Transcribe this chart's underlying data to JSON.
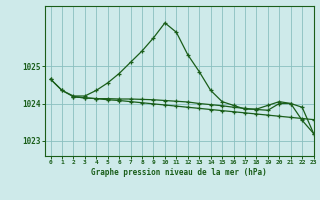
{
  "title": "Graphe pression niveau de la mer (hPa)",
  "background_color": "#ceeaea",
  "grid_color": "#8abfbf",
  "line_color": "#1a5e1a",
  "marker_color": "#1a5e1a",
  "xlim": [
    -0.5,
    23
  ],
  "ylim": [
    1022.6,
    1026.6
  ],
  "yticks": [
    1023,
    1024,
    1025
  ],
  "xticks": [
    0,
    1,
    2,
    3,
    4,
    5,
    6,
    7,
    8,
    9,
    10,
    11,
    12,
    13,
    14,
    15,
    16,
    17,
    18,
    19,
    20,
    21,
    22,
    23
  ],
  "series": [
    {
      "x": [
        0,
        1,
        2,
        3,
        4,
        5,
        6,
        7,
        8,
        9,
        10,
        11,
        12,
        13,
        14,
        15,
        16,
        17,
        18,
        19,
        20,
        21,
        22,
        23
      ],
      "y": [
        1024.65,
        1024.35,
        1024.2,
        1024.2,
        1024.35,
        1024.55,
        1024.8,
        1025.1,
        1025.4,
        1025.75,
        1026.15,
        1025.9,
        1025.3,
        1024.85,
        1024.35,
        1024.05,
        1023.95,
        1023.85,
        1023.85,
        1023.95,
        1024.05,
        1024.0,
        1023.55,
        1023.2
      ]
    },
    {
      "x": [
        2,
        3,
        4,
        5,
        6,
        7,
        8,
        9,
        10,
        11,
        12,
        13,
        14,
        15,
        16,
        17,
        18,
        19,
        20,
        21,
        22,
        23
      ],
      "y": [
        1024.18,
        1024.15,
        1024.13,
        1024.1,
        1024.08,
        1024.05,
        1024.02,
        1023.99,
        1023.96,
        1023.93,
        1023.9,
        1023.87,
        1023.84,
        1023.81,
        1023.78,
        1023.75,
        1023.72,
        1023.69,
        1023.66,
        1023.63,
        1023.6,
        1023.57
      ]
    },
    {
      "x": [
        0,
        1,
        2,
        3,
        4,
        5,
        6,
        7,
        8,
        9,
        10,
        11,
        12,
        13,
        14,
        15,
        16,
        17,
        18,
        19,
        20,
        21,
        22,
        23
      ],
      "y": [
        1024.65,
        1024.35,
        1024.18,
        1024.15,
        1024.13,
        1024.13,
        1024.12,
        1024.12,
        1024.11,
        1024.1,
        1024.08,
        1024.06,
        1024.04,
        1024.0,
        1023.97,
        1023.94,
        1023.9,
        1023.87,
        1023.84,
        1023.82,
        1024.0,
        1024.0,
        1023.9,
        1023.2
      ]
    }
  ]
}
